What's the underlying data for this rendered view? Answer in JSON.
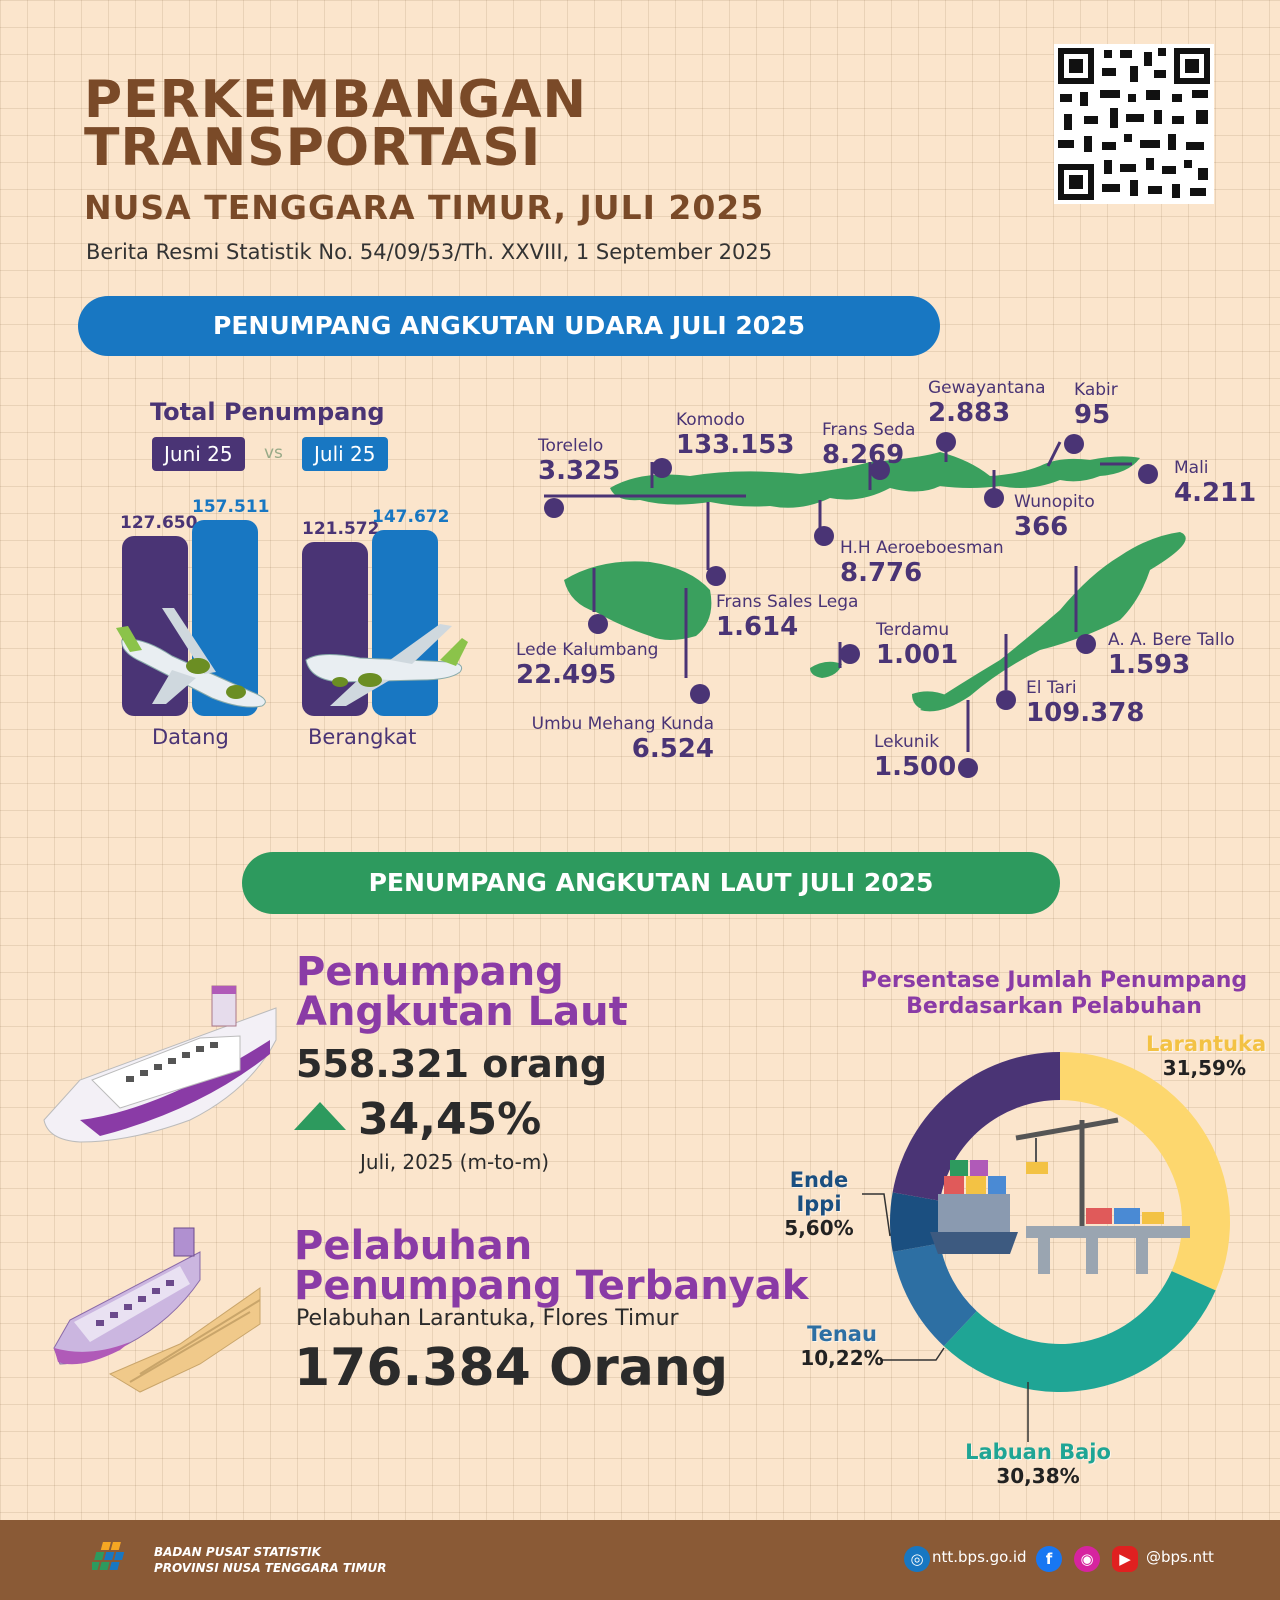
{
  "header": {
    "title_line1": "PERKEMBANGAN",
    "title_line2": "TRANSPORTASI",
    "region": "NUSA TENGGARA TIMUR, JULI 2025",
    "release": "Berita Resmi Statistik No. 54/09/53/Th. XXVIII, 1 September 2025"
  },
  "air": {
    "section_title": "PENUMPANG ANGKUTAN UDARA JULI 2025",
    "total_title": "Total Penumpang",
    "legend_jun": "Juni 25",
    "legend_vs": "vs",
    "legend_jul": "Juli 25",
    "datang": {
      "label": "Datang",
      "jun": "127.650",
      "jul": "157.511"
    },
    "berangkat": {
      "label": "Berangkat",
      "jun": "121.572",
      "jul": "147.672"
    },
    "airports": [
      {
        "name": "Torelelo",
        "value": "3.325"
      },
      {
        "name": "Komodo",
        "value": "133.153"
      },
      {
        "name": "Frans Seda",
        "value": "8.269"
      },
      {
        "name": "Gewayantana",
        "value": "2.883"
      },
      {
        "name": "Kabir",
        "value": "95"
      },
      {
        "name": "Mali",
        "value": "4.211"
      },
      {
        "name": "Wunopito",
        "value": "366"
      },
      {
        "name": "H.H Aeroeboesman",
        "value": "8.776"
      },
      {
        "name": "Frans Sales Lega",
        "value": "1.614"
      },
      {
        "name": "Lede Kalumbang",
        "value": "22.495"
      },
      {
        "name": "Umbu Mehang Kunda",
        "value": "6.524"
      },
      {
        "name": "Terdamu",
        "value": "1.001"
      },
      {
        "name": "A. A. Bere Tallo",
        "value": "1.593"
      },
      {
        "name": "El Tari",
        "value": "109.378"
      },
      {
        "name": "Lekunik",
        "value": "1.500"
      }
    ]
  },
  "sea": {
    "section_title": "PENUMPANG ANGKUTAN LAUT JULI 2025",
    "heading1_line1": "Penumpang",
    "heading1_line2": "Angkutan Laut",
    "total": "558.321 orang",
    "growth": "34,45%",
    "growth_note": "Juli, 2025 (m-to-m)",
    "heading2_line1": "Pelabuhan",
    "heading2_line2": "Penumpang Terbanyak",
    "top_port": "Pelabuhan Larantuka, Flores Timur",
    "top_port_value": "176.384 Orang"
  },
  "chart_data": {
    "type": "pie",
    "title": "Persentase Jumlah Penumpang Berdasarkan Pelabuhan",
    "title_line1": "Persentase Jumlah Penumpang",
    "title_line2": "Berdasarkan Pelabuhan",
    "slices": [
      {
        "name": "Larantuka",
        "value": 31.59,
        "label": "31,59%",
        "color": "#fdd76e"
      },
      {
        "name": "Labuan Bajo",
        "value": 30.38,
        "label": "30,38%",
        "color": "#1fa595"
      },
      {
        "name": "Tenau",
        "value": 10.22,
        "label": "10,22%",
        "color": "#2d6fa3"
      },
      {
        "name": "Ende Ippi",
        "value": 5.6,
        "label": "5,60%",
        "color": "#1b4f80"
      },
      {
        "name": "",
        "value": 22.21,
        "label": "",
        "color": "#4a3475"
      }
    ]
  },
  "footer": {
    "org_line1": "BADAN PUSAT STATISTIK",
    "org_line2": "PROVINSI NUSA TENGGARA TIMUR",
    "website": "ntt.bps.go.id",
    "handle": "@bps.ntt"
  },
  "colors": {
    "brown": "#7a4a28",
    "purple": "#4a3475",
    "blue": "#1877c2",
    "green": "#2d9a5e",
    "magenta": "#8a3ba6",
    "island": "#3aa05e"
  }
}
